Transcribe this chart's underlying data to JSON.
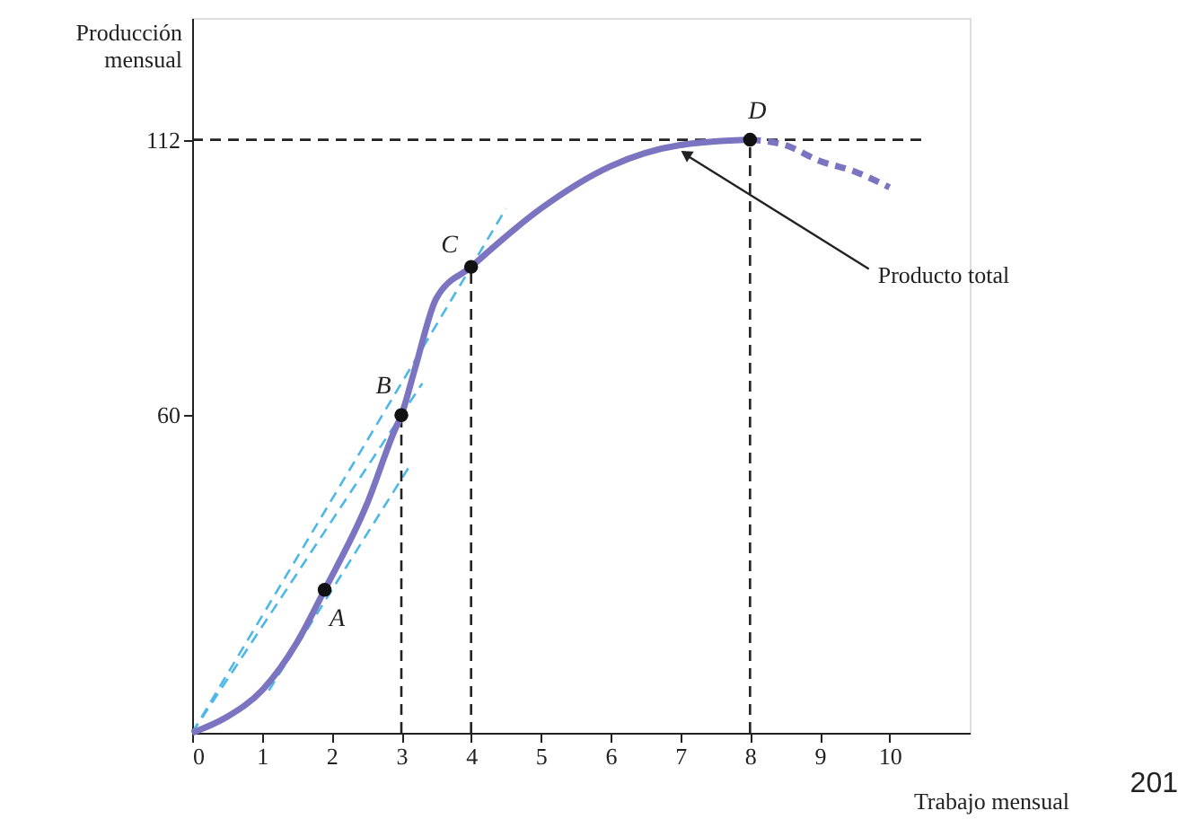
{
  "chart_data": {
    "type": "line",
    "xlabel": "Trabajo mensual",
    "ylabel": "Producción mensual",
    "xlim": [
      0,
      11.15
    ],
    "ylim": [
      0,
      135
    ],
    "xticks": [
      0,
      1,
      2,
      3,
      4,
      5,
      6,
      7,
      8,
      9,
      10
    ],
    "yticks": [
      60,
      112
    ],
    "grid": false,
    "series": [
      {
        "color": "#4db8e8",
        "line_style": "dashed",
        "x": [
          0,
          4.5
        ],
        "values": [
          0,
          99
        ]
      },
      {
        "color": "#4db8e8",
        "line_style": "dashed",
        "x": [
          0,
          3.3
        ],
        "values": [
          0,
          66
        ]
      },
      {
        "color": "#4db8e8",
        "line_style": "dashed",
        "x": [
          1.1,
          3.1
        ],
        "values": [
          8,
          50
        ]
      },
      {
        "color": "#222222",
        "line_style": "dashed",
        "x": [
          0,
          10.5
        ],
        "values": [
          112,
          112
        ]
      },
      {
        "color": "#222222",
        "line_style": "dashed",
        "x": [
          3,
          3
        ],
        "values": [
          0,
          60
        ]
      },
      {
        "color": "#222222",
        "line_style": "dashed",
        "x": [
          4,
          4
        ],
        "values": [
          0,
          88
        ]
      },
      {
        "color": "#222222",
        "line_style": "dashed",
        "x": [
          8,
          8
        ],
        "values": [
          0,
          112
        ]
      },
      {
        "color": "#7b74c0",
        "line_style": "solid",
        "x": [
          0,
          0.5,
          1,
          1.5,
          1.9,
          2.5,
          2.9,
          3,
          3.2,
          3.5,
          4,
          5,
          6,
          7,
          8
        ],
        "values": [
          0,
          3,
          8,
          17,
          27,
          43,
          57,
          60,
          69,
          82,
          88,
          99,
          107,
          111,
          112
        ]
      },
      {
        "color": "#7b74c0",
        "line_style": "dashed",
        "x": [
          8,
          8.5,
          9,
          9.5,
          10
        ],
        "values": [
          112,
          111,
          108,
          106,
          103
        ]
      },
      {
        "type": "scatter",
        "color": "#111111",
        "marker": "circle",
        "x": [
          1.9,
          3,
          4,
          8
        ],
        "values": [
          27,
          60,
          88,
          112
        ]
      }
    ],
    "annotations": [
      {
        "text": "A",
        "x": 1.9,
        "y": 27
      },
      {
        "text": "B",
        "x": 3,
        "y": 60
      },
      {
        "text": "C",
        "x": 4,
        "y": 88
      },
      {
        "text": "D",
        "x": 8,
        "y": 112
      },
      {
        "text": "Producto total",
        "x": 7,
        "y": 110
      },
      "201"
    ]
  }
}
